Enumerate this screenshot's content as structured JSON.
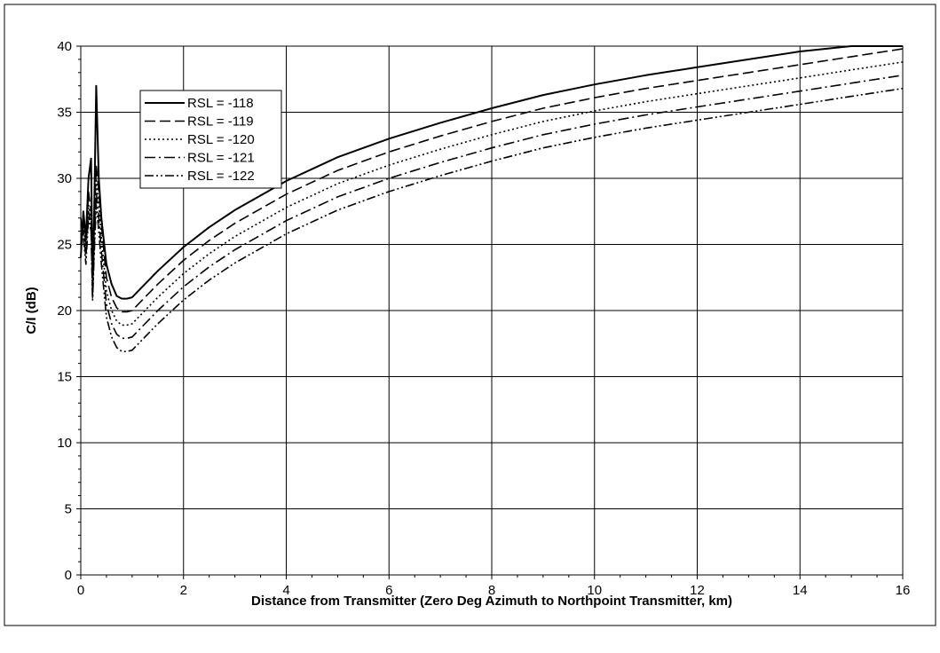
{
  "chart_data": {
    "type": "line",
    "title": "",
    "xlabel": "Distance from Transmitter (Zero Deg Azimuth to Northpoint Transmitter, km)",
    "ylabel": "C/I (dB)",
    "xlim": [
      0,
      16
    ],
    "ylim": [
      0,
      40
    ],
    "x_ticks": [
      "0",
      "2",
      "4",
      "6",
      "8",
      "10",
      "12",
      "14",
      "16"
    ],
    "y_ticks": [
      "0",
      "5",
      "10",
      "15",
      "20",
      "25",
      "30",
      "35",
      "40"
    ],
    "grid": true,
    "legend_position": "top-left",
    "series": [
      {
        "name": "RSL = -118",
        "dash": "solid",
        "points": [
          [
            0.0,
            24.0
          ],
          [
            0.05,
            27.5
          ],
          [
            0.1,
            25.5
          ],
          [
            0.15,
            30.0
          ],
          [
            0.2,
            31.5
          ],
          [
            0.23,
            22.5
          ],
          [
            0.26,
            27.0
          ],
          [
            0.3,
            37.0
          ],
          [
            0.35,
            30.0
          ],
          [
            0.4,
            27.0
          ],
          [
            0.5,
            23.5
          ],
          [
            0.6,
            22.0
          ],
          [
            0.7,
            21.1
          ],
          [
            0.8,
            20.9
          ],
          [
            0.9,
            20.9
          ],
          [
            1.0,
            21.0
          ],
          [
            1.2,
            21.8
          ],
          [
            1.5,
            23.0
          ],
          [
            2.0,
            24.8
          ],
          [
            2.5,
            26.3
          ],
          [
            3.0,
            27.6
          ],
          [
            4.0,
            29.8
          ],
          [
            5.0,
            31.6
          ],
          [
            6.0,
            33.0
          ],
          [
            7.0,
            34.2
          ],
          [
            8.0,
            35.3
          ],
          [
            9.0,
            36.3
          ],
          [
            10.0,
            37.1
          ],
          [
            11.0,
            37.8
          ],
          [
            12.0,
            38.4
          ],
          [
            13.0,
            39.0
          ],
          [
            14.0,
            39.6
          ],
          [
            15.0,
            40.0
          ],
          [
            16.0,
            40.0
          ]
        ]
      },
      {
        "name": "RSL = -119",
        "dash": "long-dash",
        "points": [
          [
            0.0,
            25.0
          ],
          [
            0.05,
            27.0
          ],
          [
            0.1,
            25.0
          ],
          [
            0.15,
            29.0
          ],
          [
            0.2,
            27.5
          ],
          [
            0.23,
            21.5
          ],
          [
            0.26,
            26.0
          ],
          [
            0.3,
            31.0
          ],
          [
            0.35,
            29.0
          ],
          [
            0.4,
            26.5
          ],
          [
            0.5,
            22.5
          ],
          [
            0.6,
            21.0
          ],
          [
            0.7,
            20.2
          ],
          [
            0.8,
            19.9
          ],
          [
            0.9,
            19.9
          ],
          [
            1.0,
            20.0
          ],
          [
            1.2,
            20.8
          ],
          [
            1.5,
            22.0
          ],
          [
            2.0,
            23.8
          ],
          [
            2.5,
            25.3
          ],
          [
            3.0,
            26.6
          ],
          [
            4.0,
            28.8
          ],
          [
            5.0,
            30.6
          ],
          [
            6.0,
            32.0
          ],
          [
            7.0,
            33.2
          ],
          [
            8.0,
            34.3
          ],
          [
            9.0,
            35.3
          ],
          [
            10.0,
            36.1
          ],
          [
            11.0,
            36.8
          ],
          [
            12.0,
            37.4
          ],
          [
            13.0,
            38.0
          ],
          [
            14.0,
            38.6
          ],
          [
            15.0,
            39.2
          ],
          [
            16.0,
            39.8
          ]
        ]
      },
      {
        "name": "RSL = -120",
        "dash": "dotted",
        "points": [
          [
            0.0,
            26.0
          ],
          [
            0.05,
            26.5
          ],
          [
            0.1,
            24.5
          ],
          [
            0.15,
            28.0
          ],
          [
            0.2,
            27.0
          ],
          [
            0.23,
            21.0
          ],
          [
            0.26,
            25.0
          ],
          [
            0.3,
            30.0
          ],
          [
            0.35,
            28.0
          ],
          [
            0.4,
            25.5
          ],
          [
            0.5,
            21.5
          ],
          [
            0.6,
            20.0
          ],
          [
            0.7,
            19.2
          ],
          [
            0.8,
            18.9
          ],
          [
            0.9,
            18.9
          ],
          [
            1.0,
            19.0
          ],
          [
            1.2,
            19.8
          ],
          [
            1.5,
            21.0
          ],
          [
            2.0,
            22.8
          ],
          [
            2.5,
            24.3
          ],
          [
            3.0,
            25.6
          ],
          [
            4.0,
            27.8
          ],
          [
            5.0,
            29.6
          ],
          [
            6.0,
            31.0
          ],
          [
            7.0,
            32.2
          ],
          [
            8.0,
            33.3
          ],
          [
            9.0,
            34.3
          ],
          [
            10.0,
            35.1
          ],
          [
            11.0,
            35.8
          ],
          [
            12.0,
            36.4
          ],
          [
            13.0,
            37.0
          ],
          [
            14.0,
            37.6
          ],
          [
            15.0,
            38.2
          ],
          [
            16.0,
            38.8
          ]
        ]
      },
      {
        "name": "RSL = -121",
        "dash": "dash-dot",
        "points": [
          [
            0.0,
            26.5
          ],
          [
            0.05,
            26.0
          ],
          [
            0.1,
            24.0
          ],
          [
            0.15,
            27.5
          ],
          [
            0.2,
            26.5
          ],
          [
            0.23,
            21.0
          ],
          [
            0.26,
            24.5
          ],
          [
            0.3,
            29.0
          ],
          [
            0.35,
            27.0
          ],
          [
            0.4,
            24.5
          ],
          [
            0.5,
            20.5
          ],
          [
            0.6,
            19.0
          ],
          [
            0.7,
            18.2
          ],
          [
            0.8,
            17.9
          ],
          [
            0.9,
            17.9
          ],
          [
            1.0,
            18.0
          ],
          [
            1.2,
            18.8
          ],
          [
            1.5,
            20.0
          ],
          [
            2.0,
            21.8
          ],
          [
            2.5,
            23.3
          ],
          [
            3.0,
            24.6
          ],
          [
            4.0,
            26.8
          ],
          [
            5.0,
            28.6
          ],
          [
            6.0,
            30.0
          ],
          [
            7.0,
            31.2
          ],
          [
            8.0,
            32.3
          ],
          [
            9.0,
            33.3
          ],
          [
            10.0,
            34.1
          ],
          [
            11.0,
            34.8
          ],
          [
            12.0,
            35.4
          ],
          [
            13.0,
            36.0
          ],
          [
            14.0,
            36.6
          ],
          [
            15.0,
            37.2
          ],
          [
            16.0,
            37.8
          ]
        ]
      },
      {
        "name": "RSL = -122",
        "dash": "dash-dot-dot",
        "points": [
          [
            0.0,
            27.0
          ],
          [
            0.05,
            25.5
          ],
          [
            0.1,
            23.5
          ],
          [
            0.15,
            27.0
          ],
          [
            0.2,
            26.0
          ],
          [
            0.23,
            20.8
          ],
          [
            0.26,
            24.0
          ],
          [
            0.3,
            28.0
          ],
          [
            0.35,
            26.0
          ],
          [
            0.4,
            23.5
          ],
          [
            0.5,
            19.5
          ],
          [
            0.6,
            18.0
          ],
          [
            0.7,
            17.2
          ],
          [
            0.8,
            16.9
          ],
          [
            0.9,
            16.9
          ],
          [
            1.0,
            17.0
          ],
          [
            1.2,
            17.8
          ],
          [
            1.5,
            19.0
          ],
          [
            2.0,
            20.8
          ],
          [
            2.5,
            22.3
          ],
          [
            3.0,
            23.6
          ],
          [
            4.0,
            25.8
          ],
          [
            5.0,
            27.6
          ],
          [
            6.0,
            29.0
          ],
          [
            7.0,
            30.2
          ],
          [
            8.0,
            31.3
          ],
          [
            9.0,
            32.3
          ],
          [
            10.0,
            33.1
          ],
          [
            11.0,
            33.8
          ],
          [
            12.0,
            34.4
          ],
          [
            13.0,
            35.0
          ],
          [
            14.0,
            35.6
          ],
          [
            15.0,
            36.2
          ],
          [
            16.0,
            36.8
          ]
        ]
      }
    ]
  },
  "colors": {
    "line": "#000000",
    "grid": "#000000",
    "background": "#ffffff"
  }
}
